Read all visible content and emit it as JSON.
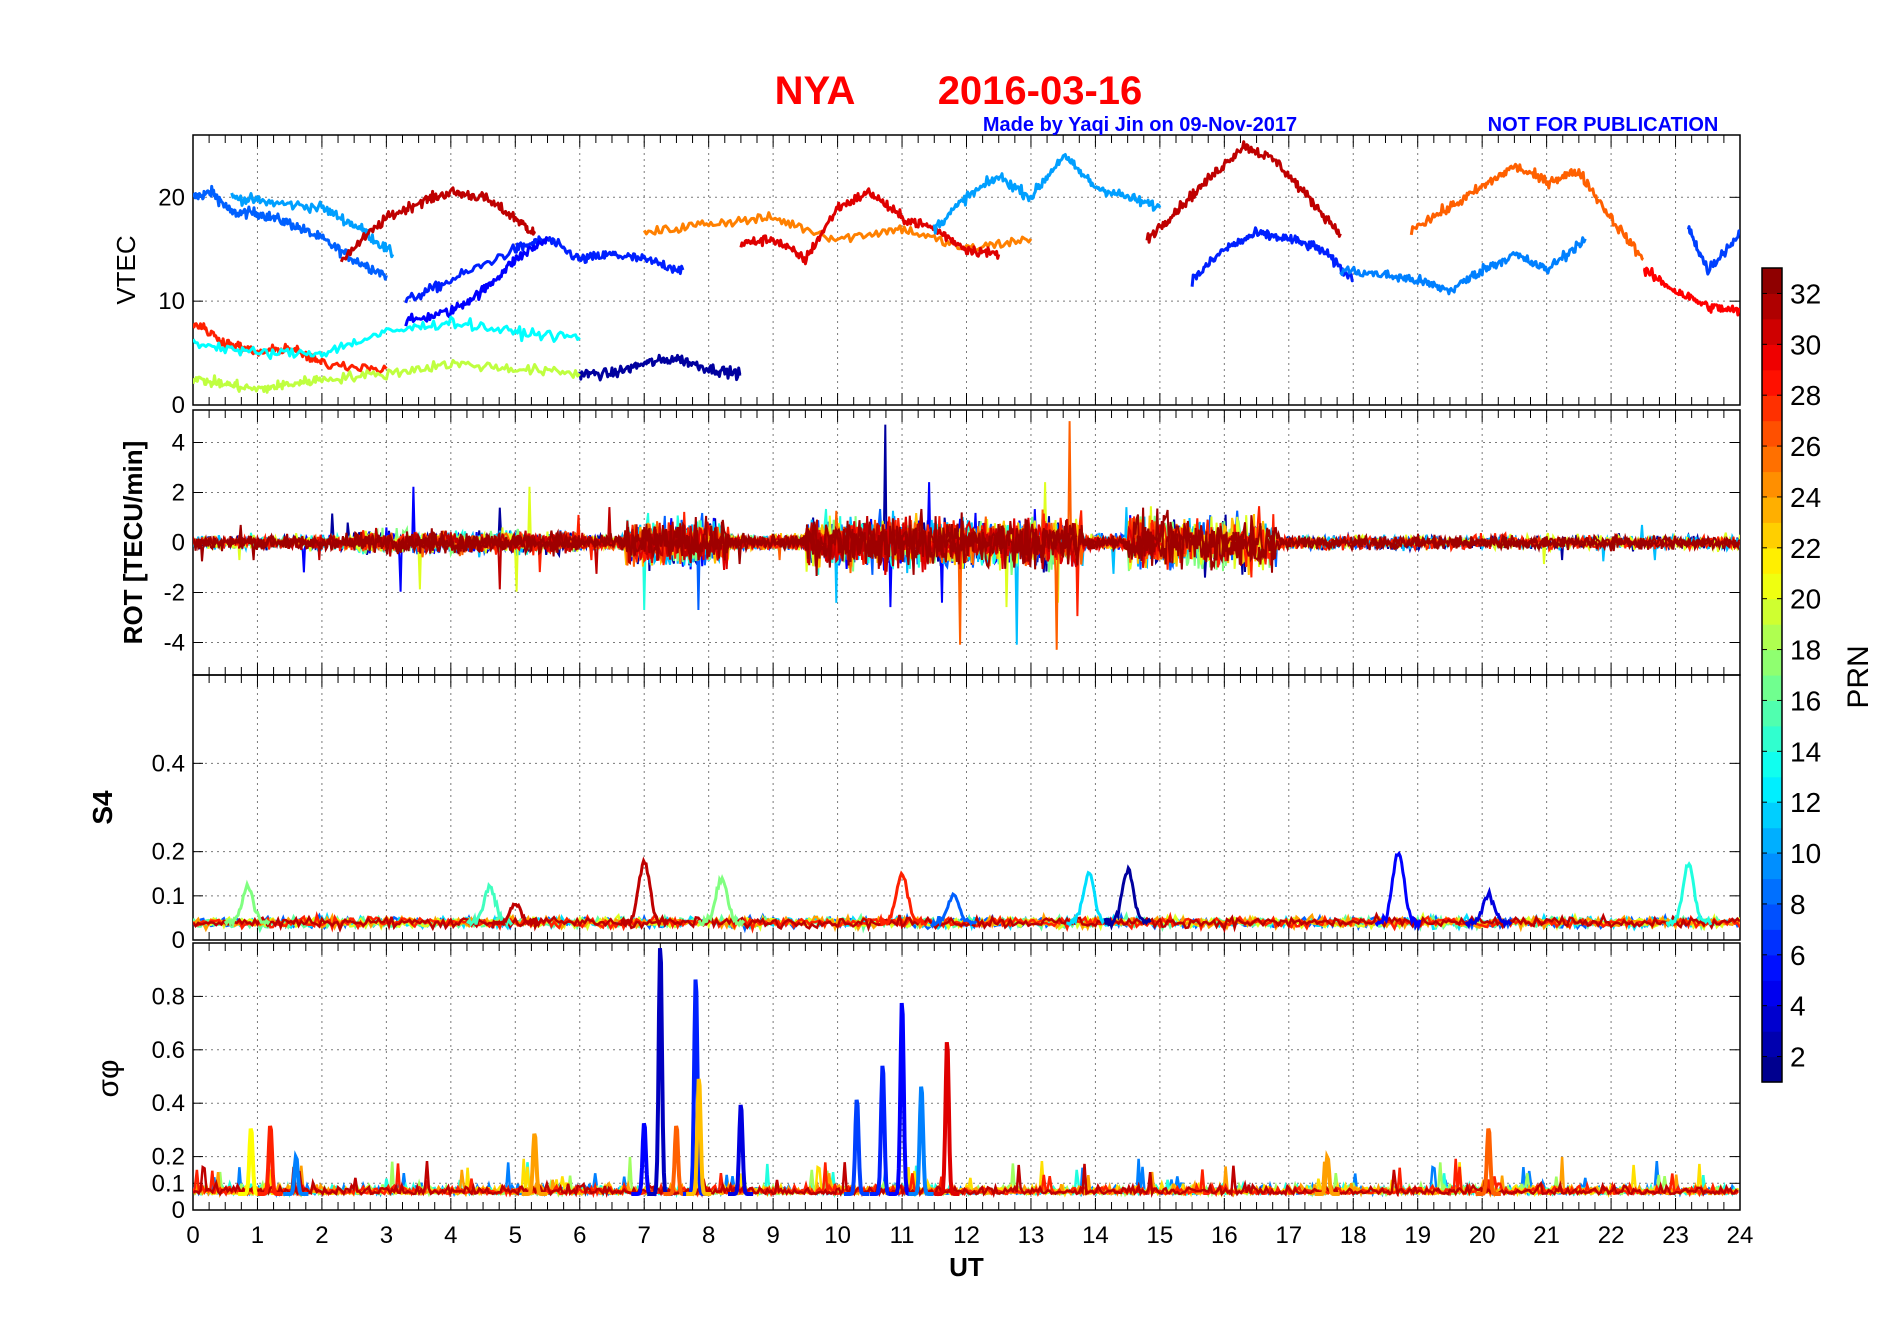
{
  "header": {
    "station": "NYA",
    "date": "2016-03-16",
    "credit": "Made by Yaqi Jin on 09-Nov-2017",
    "notice": "NOT FOR PUBLICATION",
    "title_color": "#ff0000",
    "subtitle_color": "#0000ff"
  },
  "chart_data": [
    {
      "panel": "vtec",
      "type": "line",
      "ylabel": "VTEC",
      "ylim": [
        0,
        26
      ],
      "yticks": [
        0,
        10,
        20
      ],
      "xlim": [
        0,
        24
      ],
      "grid": true,
      "series_approx": [
        {
          "prn": 8,
          "x": [
            0.0,
            0.3,
            0.6,
            1.0,
            1.5,
            2.0,
            2.5,
            3.0
          ],
          "y": [
            20,
            20.5,
            18.5,
            18.5,
            17.5,
            16,
            14,
            12.5
          ]
        },
        {
          "prn": 10,
          "x": [
            0.6,
            1.2,
            2.0,
            2.6,
            3.1
          ],
          "y": [
            20,
            19.5,
            19,
            17,
            14.5
          ]
        },
        {
          "prn": 31,
          "x": [
            2.3,
            3.0,
            3.5,
            4.0,
            4.5,
            5.0,
            5.3
          ],
          "y": [
            14,
            18,
            19.5,
            20.5,
            20,
            18,
            16.5
          ]
        },
        {
          "prn": 6,
          "x": [
            3.3,
            4.0,
            5.0,
            5.5,
            6.0,
            6.5,
            7.0,
            7.6
          ],
          "y": [
            10,
            12,
            15,
            16,
            14,
            14.5,
            14,
            13
          ]
        },
        {
          "prn": 5,
          "x": [
            3.3,
            4.0,
            4.5,
            5.0,
            5.5
          ],
          "y": [
            8,
            9,
            11,
            14,
            16
          ]
        },
        {
          "prn": 2,
          "x": [
            6.0,
            6.5,
            7.0,
            7.5,
            8.0,
            8.5
          ],
          "y": [
            3,
            3,
            4,
            4.5,
            3.5,
            3
          ]
        },
        {
          "prn": 25,
          "x": [
            7.0,
            8.0,
            9.0,
            10.0,
            11.0,
            12.0,
            13.0
          ],
          "y": [
            16.5,
            17.5,
            18,
            16,
            17,
            15,
            16
          ]
        },
        {
          "prn": 30,
          "x": [
            8.5,
            9.0,
            9.5,
            10.0,
            10.5,
            11.0,
            11.5,
            12.0,
            12.5
          ],
          "y": [
            15.5,
            16,
            14,
            19,
            20.5,
            18,
            17,
            15,
            14.5
          ]
        },
        {
          "prn": 10,
          "x": [
            11.5,
            12.0,
            12.5,
            13.0,
            13.5,
            14.0,
            14.5,
            15.0
          ],
          "y": [
            17,
            20,
            22,
            20,
            24,
            21,
            20,
            19
          ]
        },
        {
          "prn": 31,
          "x": [
            14.8,
            15.3,
            15.8,
            16.3,
            16.8,
            17.3,
            17.8
          ],
          "y": [
            16,
            19,
            22,
            25,
            23.5,
            20,
            16.5
          ]
        },
        {
          "prn": 6,
          "x": [
            15.5,
            16.0,
            16.5,
            17.0,
            17.5,
            18.0
          ],
          "y": [
            12,
            15,
            16.5,
            16,
            15,
            12
          ]
        },
        {
          "prn": 26,
          "x": [
            18.9,
            19.5,
            20.0,
            20.5,
            21.0,
            21.5,
            22.0,
            22.5
          ],
          "y": [
            17,
            19,
            21,
            23,
            21.5,
            22.5,
            18,
            14
          ]
        },
        {
          "prn": 9,
          "x": [
            17.8,
            18.5,
            19.0,
            19.5,
            20.0,
            20.5,
            21.0,
            21.6
          ],
          "y": [
            13,
            12.5,
            12,
            11,
            13,
            14.5,
            13,
            16
          ]
        },
        {
          "prn": 29,
          "x": [
            22.5,
            23.0,
            23.5,
            24.0
          ],
          "y": [
            13,
            11,
            9.5,
            9
          ]
        },
        {
          "prn": 7,
          "x": [
            23.2,
            23.5,
            24.0
          ],
          "y": [
            17,
            13,
            16.5
          ]
        },
        {
          "prn": 28,
          "x": [
            0.0,
            0.5,
            1.0,
            1.5,
            2.0,
            3.0
          ],
          "y": [
            8,
            6,
            5,
            5.5,
            4,
            3.5
          ]
        },
        {
          "prn": 19,
          "x": [
            0.0,
            0.5,
            1.0,
            1.5,
            2.0,
            3.0,
            4.0,
            5.0,
            6.0
          ],
          "y": [
            2.5,
            2,
            1.5,
            2,
            2.5,
            3,
            4,
            3.5,
            3
          ]
        },
        {
          "prn": 13,
          "x": [
            0.0,
            1.0,
            2.0,
            3.0,
            4.0,
            5.0,
            6.0
          ],
          "y": [
            6,
            5,
            5,
            7,
            8,
            7,
            6.5
          ]
        }
      ],
      "note": "Many overlapping colored line series (one per GPS satellite PRN 1-32); values approximated from the figure."
    },
    {
      "panel": "rot",
      "type": "line",
      "ylabel": "ROT [TECU/min]",
      "ylim": [
        -5.3,
        5.3
      ],
      "yticks": [
        -4,
        -2,
        0,
        2,
        4
      ],
      "xlim": [
        0,
        24
      ],
      "grid": true,
      "max_abs_approx": 5.2,
      "note": "Dense noisy scatter around 0 for all PRNs; largest excursions near 7-8 UT, 10-13 UT, 15-16 UT."
    },
    {
      "panel": "s4",
      "type": "line",
      "ylabel": "S4",
      "ylim": [
        0,
        0.6
      ],
      "yticks": [
        0,
        0.1,
        0.2,
        0.4
      ],
      "xlim": [
        0,
        24
      ],
      "grid": true,
      "baseline_approx": 0.04,
      "peaks_approx": [
        {
          "x": 0.85,
          "y": 0.12,
          "prn": 17
        },
        {
          "x": 4.6,
          "y": 0.12,
          "prn": 15
        },
        {
          "x": 5.0,
          "y": 0.08,
          "prn": 31
        },
        {
          "x": 7.0,
          "y": 0.18,
          "prn": 31
        },
        {
          "x": 8.2,
          "y": 0.14,
          "prn": 17
        },
        {
          "x": 11.0,
          "y": 0.15,
          "prn": 28
        },
        {
          "x": 11.8,
          "y": 0.1,
          "prn": 8
        },
        {
          "x": 13.9,
          "y": 0.15,
          "prn": 12
        },
        {
          "x": 14.5,
          "y": 0.16,
          "prn": 2
        },
        {
          "x": 18.7,
          "y": 0.2,
          "prn": 5
        },
        {
          "x": 20.1,
          "y": 0.1,
          "prn": 4
        },
        {
          "x": 23.2,
          "y": 0.17,
          "prn": 14
        }
      ]
    },
    {
      "panel": "sigma_phi",
      "type": "line",
      "ylabel": "σφ",
      "ylim": [
        0,
        1.0
      ],
      "yticks": [
        0,
        0.1,
        0.2,
        0.4,
        0.6,
        0.8
      ],
      "xlim": [
        0,
        24
      ],
      "xlabel": "UT",
      "xticks": [
        0,
        1,
        2,
        3,
        4,
        5,
        6,
        7,
        8,
        9,
        10,
        11,
        12,
        13,
        14,
        15,
        16,
        17,
        18,
        19,
        20,
        21,
        22,
        23,
        24
      ],
      "grid": true,
      "baseline_approx": 0.06,
      "peaks_approx": [
        {
          "x": 0.9,
          "y": 0.31,
          "prn": 21
        },
        {
          "x": 1.2,
          "y": 0.32,
          "prn": 28
        },
        {
          "x": 1.6,
          "y": 0.2,
          "prn": 9
        },
        {
          "x": 5.3,
          "y": 0.29,
          "prn": 24
        },
        {
          "x": 7.0,
          "y": 0.33,
          "prn": 5
        },
        {
          "x": 7.25,
          "y": 1.0,
          "prn": 3
        },
        {
          "x": 7.5,
          "y": 0.32,
          "prn": 26
        },
        {
          "x": 7.8,
          "y": 0.88,
          "prn": 6
        },
        {
          "x": 7.85,
          "y": 0.5,
          "prn": 23
        },
        {
          "x": 8.5,
          "y": 0.4,
          "prn": 4
        },
        {
          "x": 10.3,
          "y": 0.42,
          "prn": 7
        },
        {
          "x": 10.7,
          "y": 0.55,
          "prn": 6
        },
        {
          "x": 11.0,
          "y": 0.79,
          "prn": 5
        },
        {
          "x": 11.3,
          "y": 0.47,
          "prn": 9
        },
        {
          "x": 11.7,
          "y": 0.64,
          "prn": 30
        },
        {
          "x": 17.6,
          "y": 0.2,
          "prn": 24
        },
        {
          "x": 20.1,
          "y": 0.31,
          "prn": 26
        }
      ]
    }
  ],
  "colorbar": {
    "label": "PRN",
    "min": 1,
    "max": 33,
    "ticks": [
      2,
      4,
      6,
      8,
      10,
      12,
      14,
      16,
      18,
      20,
      22,
      24,
      26,
      28,
      30,
      32
    ],
    "colormap": "jet"
  }
}
